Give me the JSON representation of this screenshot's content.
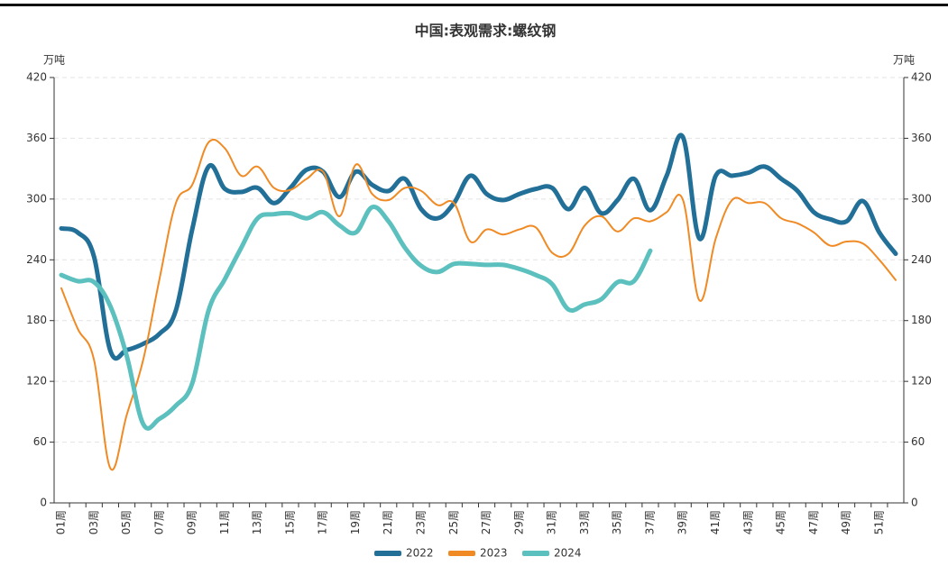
{
  "chart_data": {
    "type": "line",
    "title": "中国:表观需求:螺纹钢",
    "ylabel": "万吨",
    "y2label": "万吨",
    "categories": [
      "01周",
      null,
      "03周",
      null,
      "05周",
      null,
      "07周",
      null,
      "09周",
      null,
      "11周",
      null,
      "13周",
      null,
      "15周",
      null,
      "17周",
      null,
      "19周",
      null,
      "21周",
      null,
      "23周",
      null,
      "25周",
      null,
      "27周",
      null,
      "29周",
      null,
      "31周",
      null,
      "33周",
      null,
      "35周",
      null,
      "37周",
      null,
      "39周",
      null,
      "41周",
      null,
      "43周",
      null,
      "45周",
      null,
      "47周",
      null,
      "49周",
      null,
      "51周",
      null
    ],
    "series": [
      {
        "name": "2022",
        "color": "#226f98",
        "width": 5,
        "values": [
          271,
          267,
          243,
          150,
          151,
          157,
          167,
          190,
          270,
          332,
          310,
          307,
          311,
          296,
          311,
          329,
          327,
          302,
          327,
          314,
          308,
          320,
          290,
          281,
          296,
          323,
          305,
          299,
          305,
          310,
          311,
          290,
          311,
          286,
          299,
          320,
          289,
          323,
          361,
          261,
          323,
          323,
          326,
          332,
          320,
          308,
          287,
          280,
          278,
          298,
          267,
          246
        ]
      },
      {
        "name": "2023",
        "color": "#f08a24",
        "width": 2,
        "values": [
          212,
          172,
          141,
          34,
          87,
          141,
          221,
          296,
          314,
          356,
          350,
          323,
          332,
          311,
          309,
          320,
          327,
          283,
          334,
          305,
          299,
          311,
          308,
          294,
          296,
          258,
          270,
          265,
          270,
          272,
          247,
          246,
          274,
          283,
          268,
          281,
          278,
          287,
          299,
          200,
          261,
          299,
          296,
          296,
          281,
          276,
          267,
          254,
          258,
          256,
          240,
          220
        ]
      },
      {
        "name": "2024",
        "color": "#5bc0be",
        "width": 5,
        "values": [
          225,
          219,
          218,
          194,
          145,
          78,
          83,
          96,
          118,
          190,
          221,
          252,
          281,
          285,
          286,
          281,
          287,
          274,
          267,
          292,
          278,
          252,
          234,
          228,
          236,
          236,
          235,
          235,
          231,
          225,
          216,
          191,
          196,
          201,
          218,
          219,
          249,
          null,
          null,
          null,
          null,
          null,
          null,
          null,
          null,
          null,
          null,
          null,
          null,
          null,
          null,
          null
        ]
      }
    ],
    "ylim": [
      0,
      420
    ],
    "yticks": [
      0,
      60,
      120,
      180,
      240,
      300,
      360,
      420
    ],
    "y2lim": [
      0,
      420
    ],
    "y2ticks": [
      0,
      60,
      120,
      180,
      240,
      300,
      360,
      420
    ],
    "grid": true,
    "legend": "bottom"
  }
}
